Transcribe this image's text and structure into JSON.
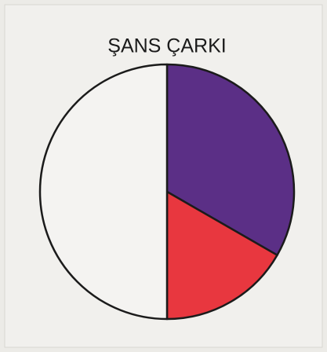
{
  "chart_data": {
    "type": "pie",
    "title": "ŞANS ÇARKI",
    "categories": [
      null,
      null,
      null
    ],
    "values": [
      33.3,
      16.7,
      50
    ],
    "colors": [
      "#5b2f86",
      "#e8373f",
      "#f4f3f1"
    ]
  }
}
